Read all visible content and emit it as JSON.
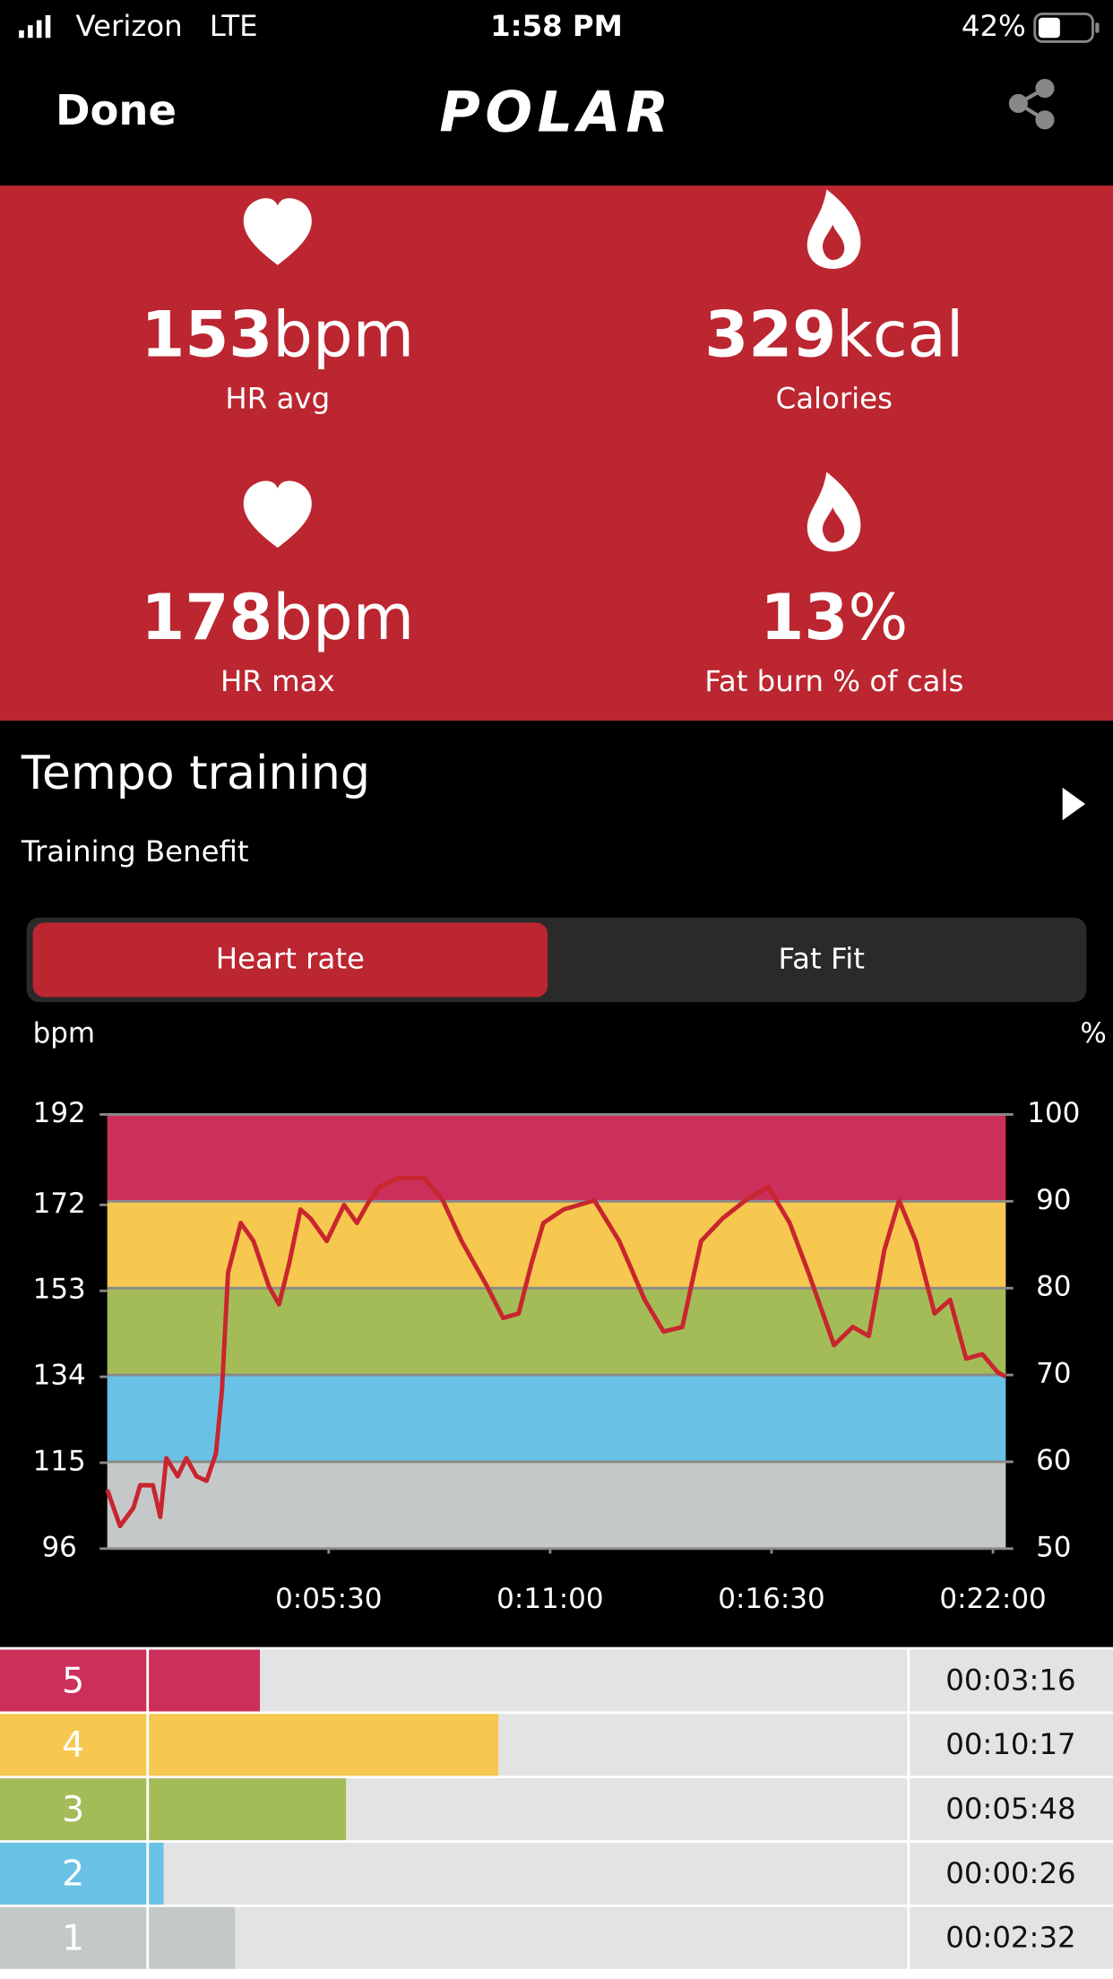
{
  "status_bar": {
    "carrier": "Verizon",
    "network": "LTE",
    "time": "1:58 PM",
    "battery": "42%"
  },
  "header": {
    "done": "Done",
    "logo": "POLAR"
  },
  "stats": [
    {
      "value": "153",
      "unit": "bpm",
      "label": "HR avg"
    },
    {
      "value": "329",
      "unit": "kcal",
      "label": "Calories"
    },
    {
      "value": "178",
      "unit": "bpm",
      "label": "HR max"
    },
    {
      "value": "13",
      "unit": "%",
      "label": "Fat burn % of cals"
    }
  ],
  "training": {
    "title": "Tempo training",
    "subtitle": "Training Benefit"
  },
  "tabs": [
    "Heart rate",
    "Fat Fit"
  ],
  "chart_data": {
    "type": "line",
    "y_label": "bpm",
    "y2_label": "%",
    "x": [
      0,
      19,
      39,
      49,
      68,
      79,
      88,
      105,
      118,
      133,
      148,
      162,
      171,
      180,
      199,
      218,
      241,
      256,
      271,
      288,
      303,
      327,
      353,
      372,
      391,
      406,
      434,
      472,
      500,
      528,
      566,
      590,
      613,
      632,
      650,
      680,
      726,
      763,
      801,
      829,
      857,
      885,
      917,
      951,
      985,
      1017,
      1045,
      1083,
      1111,
      1135,
      1158,
      1180,
      1205,
      1233,
      1256,
      1280,
      1304,
      1327,
      1339
    ],
    "values": [
      109,
      101,
      105,
      110,
      110,
      103,
      116,
      112,
      116,
      112,
      111,
      117,
      131,
      157,
      168,
      164,
      154,
      150,
      159,
      171,
      169,
      164,
      172,
      168,
      173,
      176,
      178,
      178,
      173,
      164,
      154,
      147,
      148,
      159,
      168,
      171,
      173,
      164,
      151,
      144,
      145,
      164,
      169,
      173,
      176,
      168,
      157,
      141,
      145,
      143,
      162,
      173,
      164,
      148,
      151,
      138,
      139,
      135,
      134
    ],
    "color": "#c8262f",
    "xlim": [
      0,
      1339
    ],
    "xticks": [
      {
        "value": 330,
        "label": "0:05:30"
      },
      {
        "value": 660,
        "label": "0:11:00"
      },
      {
        "value": 990,
        "label": "0:16:30"
      },
      {
        "value": 1320,
        "label": "0:22:00"
      }
    ],
    "ylim": [
      96,
      192
    ],
    "yticks": [
      96,
      115,
      134,
      153,
      172,
      192
    ],
    "y2lim": [
      50,
      100
    ],
    "y2ticks": [
      50,
      60,
      70,
      80,
      90,
      100
    ],
    "band_colors": [
      "#c4c8c8",
      "#6ac1e6",
      "#a4bc58",
      "#f6c84f",
      "#cc2f5a"
    ]
  },
  "zones": [
    {
      "zone": 5,
      "color": "#cc2f5a",
      "seconds": 196,
      "time": "00:03:16"
    },
    {
      "zone": 4,
      "color": "#f6c84f",
      "seconds": 617,
      "time": "00:10:17"
    },
    {
      "zone": 3,
      "color": "#a4bc58",
      "seconds": 348,
      "time": "00:05:48"
    },
    {
      "zone": 2,
      "color": "#6ac1e6",
      "seconds": 26,
      "time": "00:00:26"
    },
    {
      "zone": 1,
      "color": "#c4c8c8",
      "seconds": 152,
      "time": "00:02:32"
    }
  ]
}
